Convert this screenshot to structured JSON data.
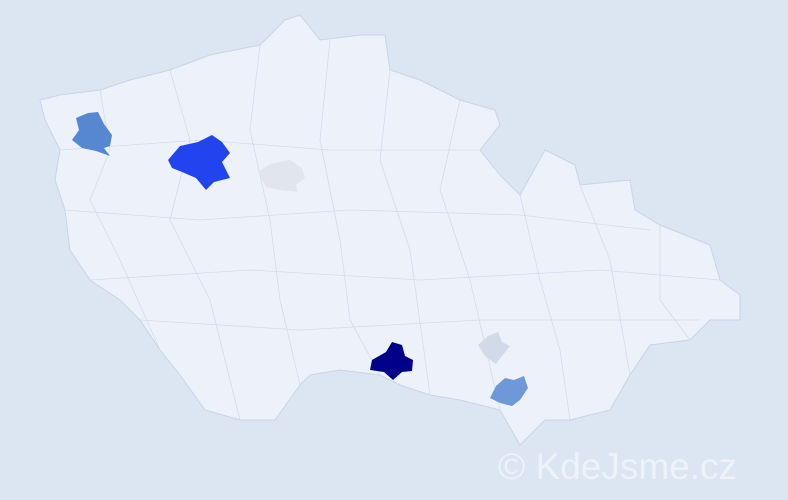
{
  "map": {
    "country_fill": "#edf1f9",
    "border_color": "#c9d3ea",
    "highlighted_districts": [
      {
        "id": "northwest-1",
        "color": "#5588d0"
      },
      {
        "id": "northwest-2",
        "color": "#2244ee"
      },
      {
        "id": "central-west",
        "color": "#e2e5ee"
      },
      {
        "id": "south-1",
        "color": "#000088"
      },
      {
        "id": "southeast-1",
        "color": "#d2daea"
      },
      {
        "id": "southeast-2",
        "color": "#6f98d8"
      }
    ]
  },
  "watermark": "© KdeJsme.cz"
}
